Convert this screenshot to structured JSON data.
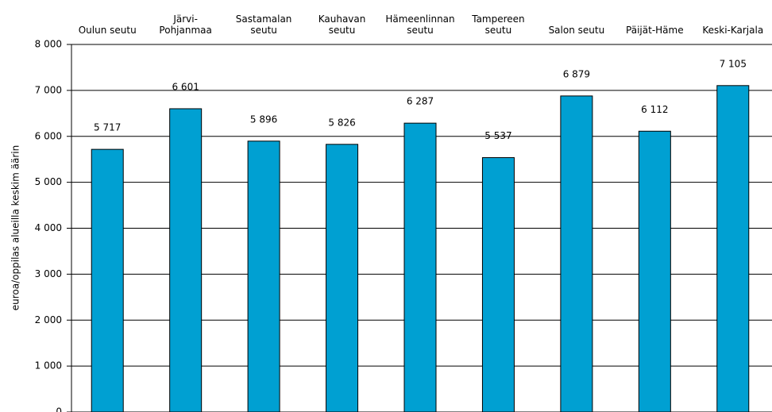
{
  "chart_data": {
    "type": "bar",
    "y_label": "euroa/oppilas alueilla keskim äärin",
    "categories": [
      "Oulun seutu",
      "Järvi-\nPohjanmaa",
      "Sastamalan\nseutu",
      "Kauhavan\nseutu",
      "Hämeenlinnan\nseutu",
      "Tampereen\nseutu",
      "Salon seutu",
      "Päijät-Häme",
      "Keski-Karjala"
    ],
    "values": [
      5717,
      6601,
      5896,
      5826,
      6287,
      5537,
      6879,
      6112,
      7105
    ],
    "value_labels": [
      "5 717",
      "6 601",
      "5 896",
      "5 826",
      "6 287",
      "5 537",
      "6 879",
      "6 112",
      "7 105"
    ],
    "color": "#00a0d2",
    "ylim": [
      0,
      8000
    ],
    "yticks": [
      {
        "value": 0,
        "label": "0"
      },
      {
        "value": 1000,
        "label": "1 000"
      },
      {
        "value": 2000,
        "label": "2 000"
      },
      {
        "value": 3000,
        "label": "3 000"
      },
      {
        "value": 4000,
        "label": "4 000"
      },
      {
        "value": 5000,
        "label": "5 000"
      },
      {
        "value": 6000,
        "label": "6 000"
      },
      {
        "value": 7000,
        "label": "7 000"
      },
      {
        "value": 8000,
        "label": "8 000"
      }
    ],
    "grid": true
  }
}
